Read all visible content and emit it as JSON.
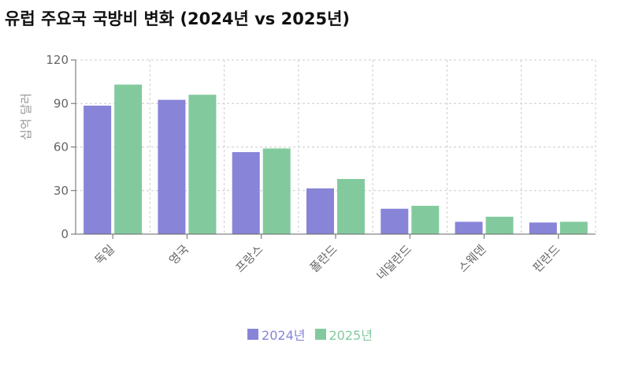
{
  "chart_data": {
    "type": "bar",
    "title": "유럽 주요국 국방비 변화 (2024년 vs 2025년)",
    "ylabel": "십억 달러",
    "xlabel": "",
    "ylim": [
      0,
      120
    ],
    "yticks": [
      0,
      30,
      60,
      90,
      120
    ],
    "grid": true,
    "legend_position": "bottom-center",
    "categories": [
      "독일",
      "영국",
      "프랑스",
      "폴란드",
      "네덜란드",
      "스웨덴",
      "핀란드"
    ],
    "series": [
      {
        "name": "2024년",
        "color": "#8884d8",
        "values": [
          88.5,
          92.5,
          56.5,
          31.5,
          17.5,
          8.5,
          8
        ]
      },
      {
        "name": "2025년",
        "color": "#82ca9d",
        "values": [
          103,
          96,
          59,
          38,
          19.5,
          12,
          8.5
        ]
      }
    ]
  }
}
